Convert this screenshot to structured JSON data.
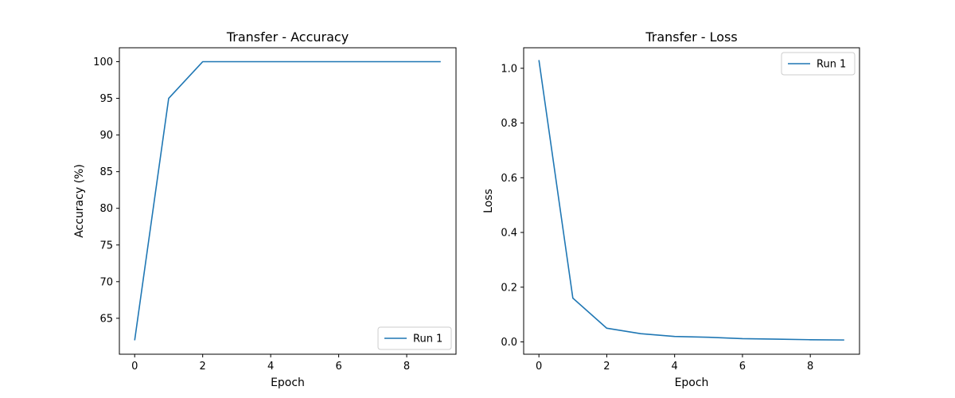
{
  "colors": {
    "series": "#1f77b4",
    "axes": "#000000",
    "legend_border": "#cccccc"
  },
  "chart_data": [
    {
      "type": "line",
      "title": "Transfer - Accuracy",
      "xlabel": "Epoch",
      "ylabel": "Accuracy (%)",
      "xlim": [
        -0.45,
        9.45
      ],
      "ylim": [
        60.1,
        101.9
      ],
      "xticks": [
        0,
        2,
        4,
        6,
        8
      ],
      "yticks": [
        65,
        70,
        75,
        80,
        85,
        90,
        95,
        100
      ],
      "xtick_labels": [
        "0",
        "2",
        "4",
        "6",
        "8"
      ],
      "ytick_labels": [
        "65",
        "70",
        "75",
        "80",
        "85",
        "90",
        "95",
        "100"
      ],
      "legend_position": "lower-right",
      "grid": false,
      "series": [
        {
          "name": "Run 1",
          "x": [
            0,
            1,
            2,
            3,
            4,
            5,
            6,
            7,
            8,
            9
          ],
          "y": [
            62,
            95,
            100,
            100,
            100,
            100,
            100,
            100,
            100,
            100
          ]
        }
      ]
    },
    {
      "type": "line",
      "title": "Transfer - Loss",
      "xlabel": "Epoch",
      "ylabel": "Loss",
      "xlim": [
        -0.45,
        9.45
      ],
      "ylim": [
        -0.045,
        1.075
      ],
      "xticks": [
        0,
        2,
        4,
        6,
        8
      ],
      "yticks": [
        0.0,
        0.2,
        0.4,
        0.6,
        0.8,
        1.0
      ],
      "xtick_labels": [
        "0",
        "2",
        "4",
        "6",
        "8"
      ],
      "ytick_labels": [
        "0.0",
        "0.2",
        "0.4",
        "0.6",
        "0.8",
        "1.0"
      ],
      "legend_position": "upper-right",
      "grid": false,
      "series": [
        {
          "name": "Run 1",
          "x": [
            0,
            1,
            2,
            3,
            4,
            5,
            6,
            7,
            8,
            9
          ],
          "y": [
            1.03,
            0.16,
            0.05,
            0.03,
            0.02,
            0.017,
            0.012,
            0.01,
            0.008,
            0.007
          ]
        }
      ]
    }
  ]
}
